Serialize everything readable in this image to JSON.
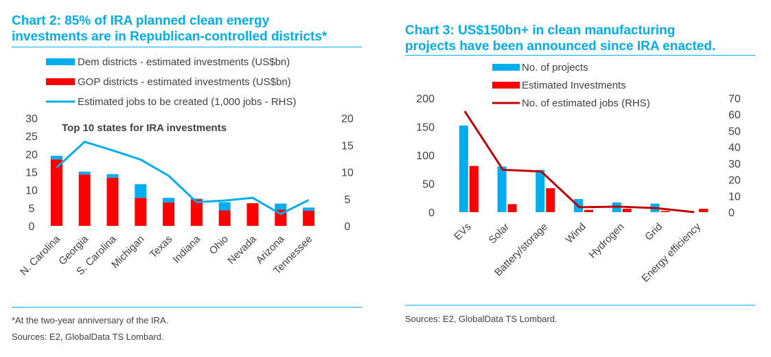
{
  "colors": {
    "dem": "#00AEEF",
    "gop": "#FF0000",
    "jobs_left": "#00AEEF",
    "projects": "#00AEEF",
    "investments": "#FF0000",
    "jobs_right": "#C00000",
    "title": "#00AEEF",
    "text": "#404040"
  },
  "left": {
    "title_line1": "Chart 2: 85% of IRA planned clean energy",
    "title_line2": "investments are in Republican-controlled districts*",
    "footnote": "*At the two-year anniversary of the IRA.",
    "sources": "Sources: E2, GlobalData TS Lombard."
  },
  "right": {
    "title_line1": "Chart 3: US$150bn+ in clean manufacturing",
    "title_line2": "projects have been announced since IRA enacted.",
    "sources": "Sources: E2, GlobalData TS Lombard."
  },
  "chart_data": [
    {
      "type": "bar",
      "stacked": true,
      "annotation": "Top 10 states for IRA investments",
      "categories": [
        "N. Carolina",
        "Georgia",
        "S. Carolina",
        "Michigan",
        "Texas",
        "Indiana",
        "Ohio",
        "Nevada",
        "Arizona",
        "Tennessee"
      ],
      "series": [
        {
          "name": "Dem districts - estimated investments (US$bn)",
          "type": "bar",
          "values": [
            1.0,
            0.8,
            1.0,
            3.8,
            1.3,
            0.2,
            2.3,
            0.0,
            1.7,
            0.9
          ]
        },
        {
          "name": "GOP districts - estimated investments (US$bn)",
          "type": "bar",
          "values": [
            18.5,
            14.3,
            13.4,
            7.8,
            6.5,
            7.4,
            4.3,
            6.3,
            4.5,
            4.2
          ]
        },
        {
          "name": "Estimated jobs to be created (1,000 jobs - RHS)",
          "type": "line",
          "axis": "right",
          "values": [
            10.8,
            15.6,
            14.0,
            12.3,
            9.3,
            4.4,
            4.7,
            5.2,
            2.2,
            4.8
          ]
        }
      ],
      "ylim": [
        0,
        30
      ],
      "yticks": [
        "0",
        "5",
        "10",
        "15",
        "20",
        "25",
        "30"
      ],
      "y2lim": [
        0,
        20
      ],
      "y2ticks": [
        "0",
        "5",
        "10",
        "15",
        "20"
      ],
      "legend": "top"
    },
    {
      "type": "bar",
      "categories": [
        "EVs",
        "Solar",
        "Battery/storage",
        "Wind",
        "Hydrogen",
        "Grid",
        "Energy efficiency"
      ],
      "series": [
        {
          "name": "No. of projects",
          "type": "bar",
          "values": [
            152,
            80,
            74,
            23,
            17,
            15,
            0
          ]
        },
        {
          "name": "Estimated Investments",
          "type": "bar",
          "values": [
            81,
            14,
            42,
            4,
            6,
            2,
            6
          ]
        },
        {
          "name": "No. of estimated jobs (RHS)",
          "type": "line",
          "axis": "right",
          "values": [
            62,
            26,
            25,
            3,
            3.4,
            2.5,
            0
          ]
        }
      ],
      "ylim": [
        0,
        200
      ],
      "yticks": [
        "0",
        "50",
        "100",
        "150",
        "200"
      ],
      "y2lim": [
        0,
        70
      ],
      "y2ticks": [
        "0",
        "10",
        "20",
        "30",
        "40",
        "50",
        "60",
        "70"
      ],
      "legend": "top"
    }
  ]
}
